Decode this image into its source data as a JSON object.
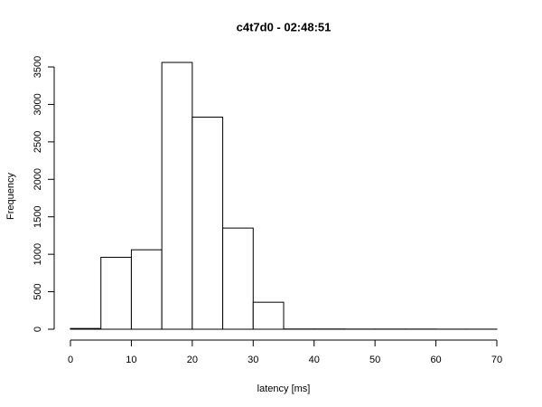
{
  "chart_data": {
    "type": "histogram",
    "title": "c4t7d0 - 02:48:51",
    "x_label": "latency [ms]",
    "y_label": "Frequency",
    "bins": [
      0,
      5,
      10,
      15,
      20,
      25,
      30,
      35,
      40,
      45,
      50,
      55,
      60,
      65,
      70
    ],
    "values": [
      10,
      960,
      1060,
      3560,
      2830,
      1350,
      360,
      3,
      3,
      2,
      2,
      2,
      1,
      1
    ],
    "color": "#ffffff",
    "edge_color": "#000000",
    "xlim": [
      0,
      70
    ],
    "xticks": [
      0,
      10,
      20,
      30,
      40,
      50,
      60,
      70
    ],
    "ylim": [
      0,
      3500
    ],
    "yticks": [
      0,
      500,
      1000,
      1500,
      2000,
      2500,
      3000,
      3500
    ]
  }
}
